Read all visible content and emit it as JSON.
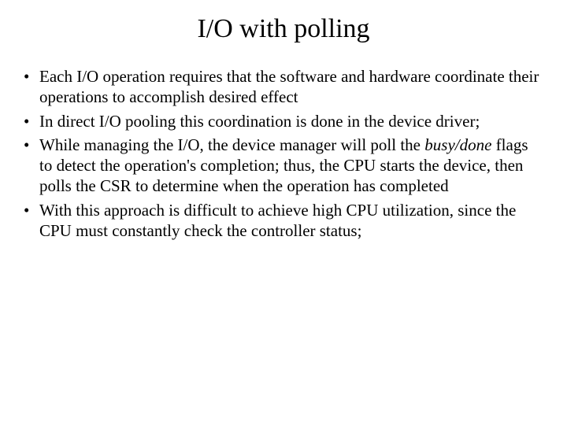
{
  "slide": {
    "title": "I/O with polling",
    "bullets": [
      {
        "parts": [
          {
            "text": "Each I/O operation requires that the software and hardware coordinate their operations to accomplish desired effect",
            "italic": false
          }
        ]
      },
      {
        "parts": [
          {
            "text": "In direct I/O pooling this coordination is done in the device driver;",
            "italic": false
          }
        ]
      },
      {
        "parts": [
          {
            "text": "While managing the I/O, the device manager will poll the ",
            "italic": false
          },
          {
            "text": "busy/done",
            "italic": true
          },
          {
            "text": " flags to detect the operation's completion; thus, the CPU starts the device, then polls the CSR to determine when the operation has completed",
            "italic": false
          }
        ]
      },
      {
        "parts": [
          {
            "text": "With this approach is difficult to achieve high CPU utilization, since the CPU must constantly check the controller status;",
            "italic": false
          }
        ]
      }
    ]
  },
  "style": {
    "background_color": "#ffffff",
    "text_color": "#000000",
    "font_family": "Times New Roman",
    "title_fontsize": 34,
    "body_fontsize": 21,
    "line_height": 1.25
  }
}
